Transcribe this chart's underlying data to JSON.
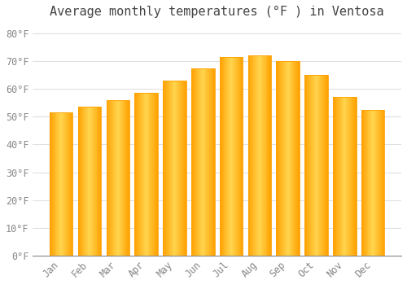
{
  "title": "Average monthly temperatures (°F ) in Ventosa",
  "months": [
    "Jan",
    "Feb",
    "Mar",
    "Apr",
    "May",
    "Jun",
    "Jul",
    "Aug",
    "Sep",
    "Oct",
    "Nov",
    "Dec"
  ],
  "values": [
    51.5,
    53.5,
    56.0,
    58.5,
    63.0,
    67.5,
    71.5,
    72.0,
    70.0,
    65.0,
    57.0,
    52.5
  ],
  "bar_color_center": "#FFD54F",
  "bar_color_edge": "#FFA000",
  "background_color": "#FFFFFF",
  "plot_bg_color": "#FFFFFF",
  "grid_color": "#E0E0E0",
  "text_color": "#888888",
  "title_color": "#444444",
  "ylim": [
    0,
    84
  ],
  "yticks": [
    0,
    10,
    20,
    30,
    40,
    50,
    60,
    70,
    80
  ],
  "ytick_labels": [
    "0°F",
    "10°F",
    "20°F",
    "30°F",
    "40°F",
    "50°F",
    "60°F",
    "70°F",
    "80°F"
  ],
  "title_fontsize": 11,
  "tick_fontsize": 8.5,
  "bar_width": 0.82
}
